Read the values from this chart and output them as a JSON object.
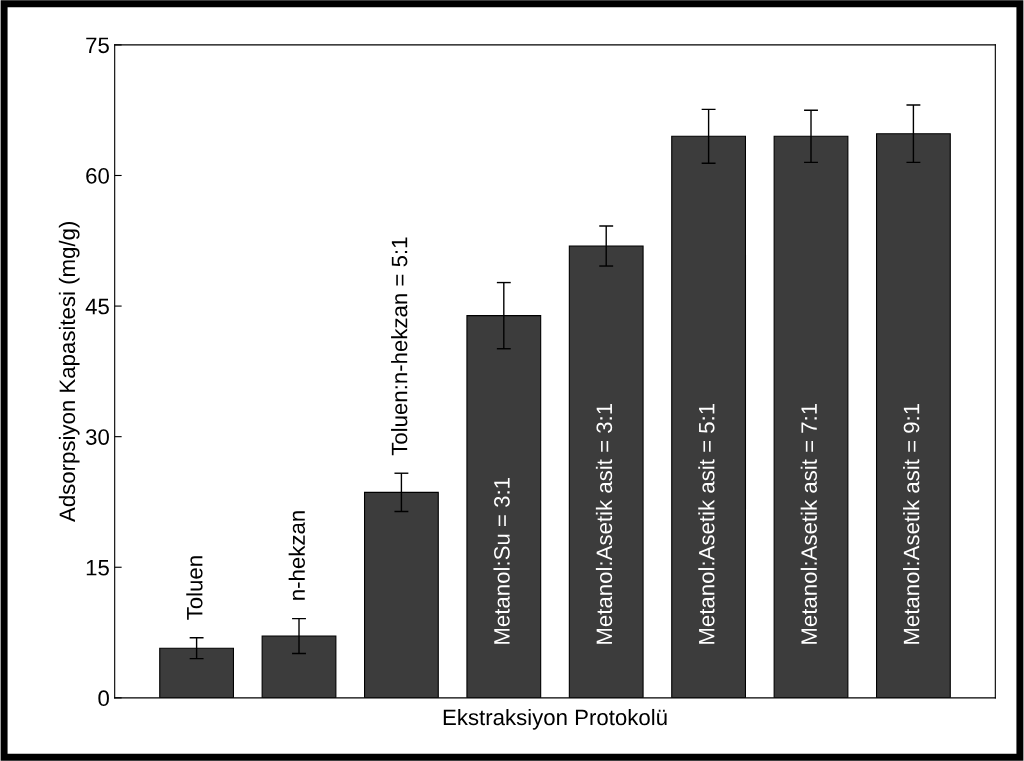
{
  "chart_data": {
    "type": "bar",
    "xlabel": "Ekstraksiyon Protokolü",
    "ylabel": "Adsorpsiyon Kapasitesi (mg/g)",
    "categories": [
      "Toluen",
      "n-hekzan",
      "Toluen:n-hekzan = 5:1",
      "Metanol:Su = 3:1",
      "Metanol:Asetik asit = 3:1",
      "Metanol:Asetik asit = 5:1",
      "Metanol:Asetik asit = 7:1",
      "Metanol:Asetik asit = 9:1"
    ],
    "values": [
      5.7,
      7.1,
      23.6,
      43.9,
      51.9,
      64.5,
      64.5,
      64.8
    ],
    "errors": [
      1.2,
      2.0,
      2.2,
      3.8,
      2.3,
      3.1,
      3.0,
      3.3
    ],
    "color": "#3c3c3c",
    "ylim": [
      0,
      75
    ],
    "yticks": [
      0,
      15,
      30,
      45,
      60,
      75
    ],
    "grid": false
  }
}
